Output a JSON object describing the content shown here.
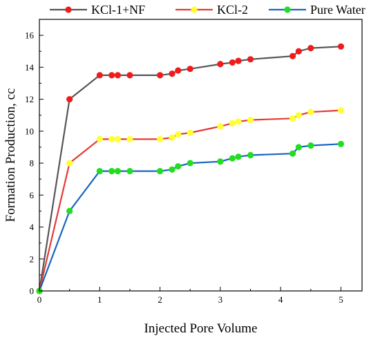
{
  "chart_data": {
    "type": "line",
    "xlabel": "Injected Pore Volume",
    "ylabel": "Formation Production, cc",
    "xlim": [
      0,
      5.35
    ],
    "ylim": [
      0,
      17
    ],
    "xticks": [
      0,
      1,
      2,
      3,
      4,
      5
    ],
    "yticks": [
      0,
      2,
      4,
      6,
      8,
      10,
      12,
      14,
      16
    ],
    "grid": false,
    "legend_position": "top",
    "series": [
      {
        "name": "KCl-1+NF",
        "line_color": "#555555",
        "marker_color": "#ee1c1c",
        "x": [
          0,
          0.5,
          1,
          1.2,
          1.3,
          1.5,
          2,
          2.2,
          2.3,
          2.5,
          3,
          3.2,
          3.3,
          3.5,
          4.2,
          4.3,
          4.5,
          5
        ],
        "y": [
          0,
          12,
          13.5,
          13.5,
          13.5,
          13.5,
          13.5,
          13.6,
          13.8,
          13.9,
          14.2,
          14.3,
          14.4,
          14.5,
          14.7,
          15.0,
          15.2,
          15.3
        ]
      },
      {
        "name": "KCl-2",
        "line_color": "#e53935",
        "marker_color": "#ffff33",
        "x": [
          0,
          0.5,
          1,
          1.2,
          1.3,
          1.5,
          2,
          2.2,
          2.3,
          2.5,
          3,
          3.2,
          3.3,
          3.5,
          4.2,
          4.3,
          4.5,
          5
        ],
        "y": [
          0,
          8,
          9.5,
          9.5,
          9.5,
          9.5,
          9.5,
          9.6,
          9.8,
          9.9,
          10.3,
          10.5,
          10.6,
          10.7,
          10.8,
          11.0,
          11.2,
          11.3
        ]
      },
      {
        "name": "Pure Water",
        "line_color": "#1565c0",
        "marker_color": "#22dd22",
        "x": [
          0,
          0.5,
          1,
          1.2,
          1.3,
          1.5,
          2,
          2.2,
          2.3,
          2.5,
          3,
          3.2,
          3.3,
          3.5,
          4.2,
          4.3,
          4.5,
          5
        ],
        "y": [
          0,
          5,
          7.5,
          7.5,
          7.5,
          7.5,
          7.5,
          7.6,
          7.8,
          8.0,
          8.1,
          8.3,
          8.4,
          8.5,
          8.6,
          9.0,
          9.1,
          9.2
        ]
      }
    ]
  }
}
